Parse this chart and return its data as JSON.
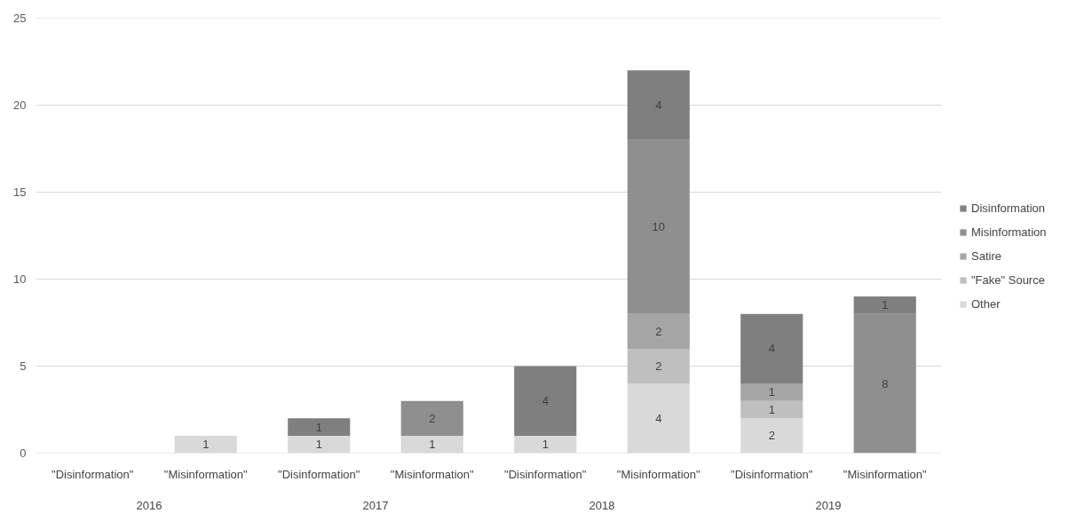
{
  "chart_data": {
    "type": "bar",
    "stacked": true,
    "categories": [
      "\"Disinformation\"",
      "\"Misinformation\"",
      "\"Disinformation\"",
      "\"Misinformation\"",
      "\"Disinformation\"",
      "\"Misinformation\"",
      "\"Disinformation\"",
      "\"Misinformation\""
    ],
    "annotations": [
      "2016",
      "2017",
      "2018",
      "2019"
    ],
    "series": [
      {
        "name": "Other",
        "color": "#d9d9d9",
        "values": [
          null,
          1,
          1,
          1,
          1,
          4,
          2,
          null
        ]
      },
      {
        "name": "\"Fake\" Source",
        "color": "#bfbfbf",
        "values": [
          null,
          null,
          null,
          null,
          null,
          2,
          1,
          null
        ]
      },
      {
        "name": "Satire",
        "color": "#a5a5a5",
        "values": [
          null,
          null,
          null,
          null,
          null,
          2,
          1,
          null
        ]
      },
      {
        "name": "Misinformation",
        "color": "#8f8f8f",
        "values": [
          null,
          null,
          null,
          2,
          null,
          10,
          null,
          8
        ]
      },
      {
        "name": "Disinformation",
        "color": "#7f7f7f",
        "values": [
          null,
          null,
          1,
          null,
          4,
          4,
          4,
          1
        ]
      }
    ],
    "ylim": [
      0,
      25
    ],
    "yticks": [
      0,
      5,
      10,
      15,
      20,
      25
    ],
    "grid": "y",
    "legend": "right",
    "data_labels": true
  }
}
